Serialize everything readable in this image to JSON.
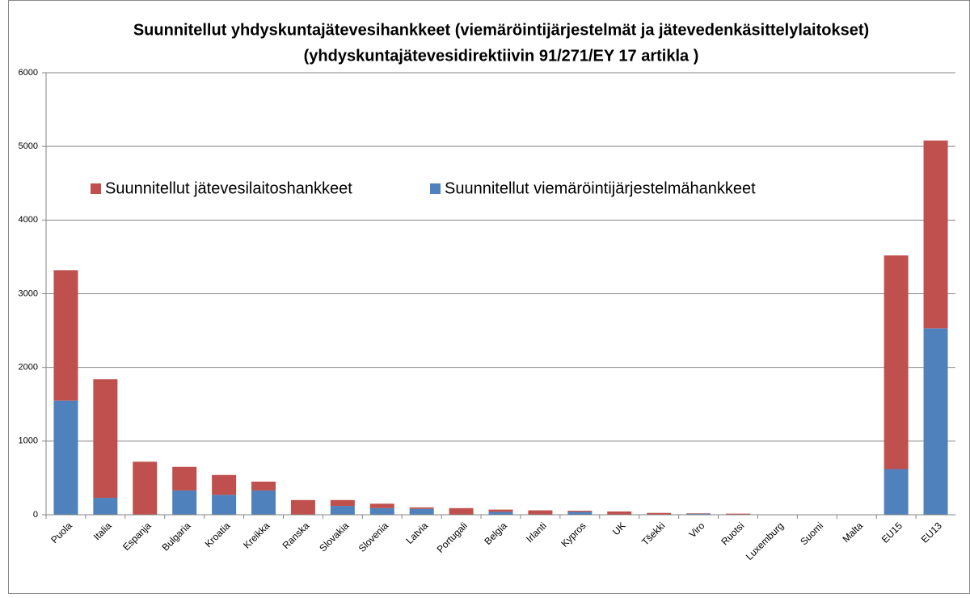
{
  "chart_data": {
    "type": "stacked_bar",
    "title": "Suunnitellut yhdyskuntajätevesihankkeet (viemäröintijärjestelmät ja jätevedenkäsittelylaitokset)",
    "subtitle": "(yhdyskuntajätevesidirektiivin 91/271/EY 17 artikla )",
    "categories": [
      "Puola",
      "Italia",
      "Espanja",
      "Bulgaria",
      "Kroatia",
      "Kreikka",
      "Ranska",
      "Slovakia",
      "Slovenia",
      "Latvia",
      "Portugali",
      "Belgia",
      "Irlanti",
      "Kypros",
      "UK",
      "Tšekki",
      "Viro",
      "Ruotsi",
      "Luxemburg",
      "Suomi",
      "Malta",
      "EU15",
      "EU13"
    ],
    "series": [
      {
        "name": "Suunnitellut jätevesilaitoshankkeet",
        "color": "#c0504d",
        "values": [
          1770,
          1610,
          720,
          320,
          270,
          120,
          200,
          80,
          60,
          20,
          90,
          30,
          60,
          15,
          45,
          25,
          5,
          15,
          5,
          2,
          1,
          2900,
          2550
        ]
      },
      {
        "name": "Suunnitellut viemäröintijärjestelmähankkeet",
        "color": "#4f81bd",
        "values": [
          1550,
          230,
          0,
          330,
          270,
          330,
          0,
          120,
          90,
          80,
          0,
          40,
          0,
          40,
          0,
          0,
          15,
          0,
          0,
          0,
          0,
          620,
          2530
        ]
      }
    ],
    "ylim": [
      0,
      6000
    ],
    "yticks": [
      0,
      1000,
      2000,
      3000,
      4000,
      5000,
      6000
    ],
    "grid": true
  }
}
